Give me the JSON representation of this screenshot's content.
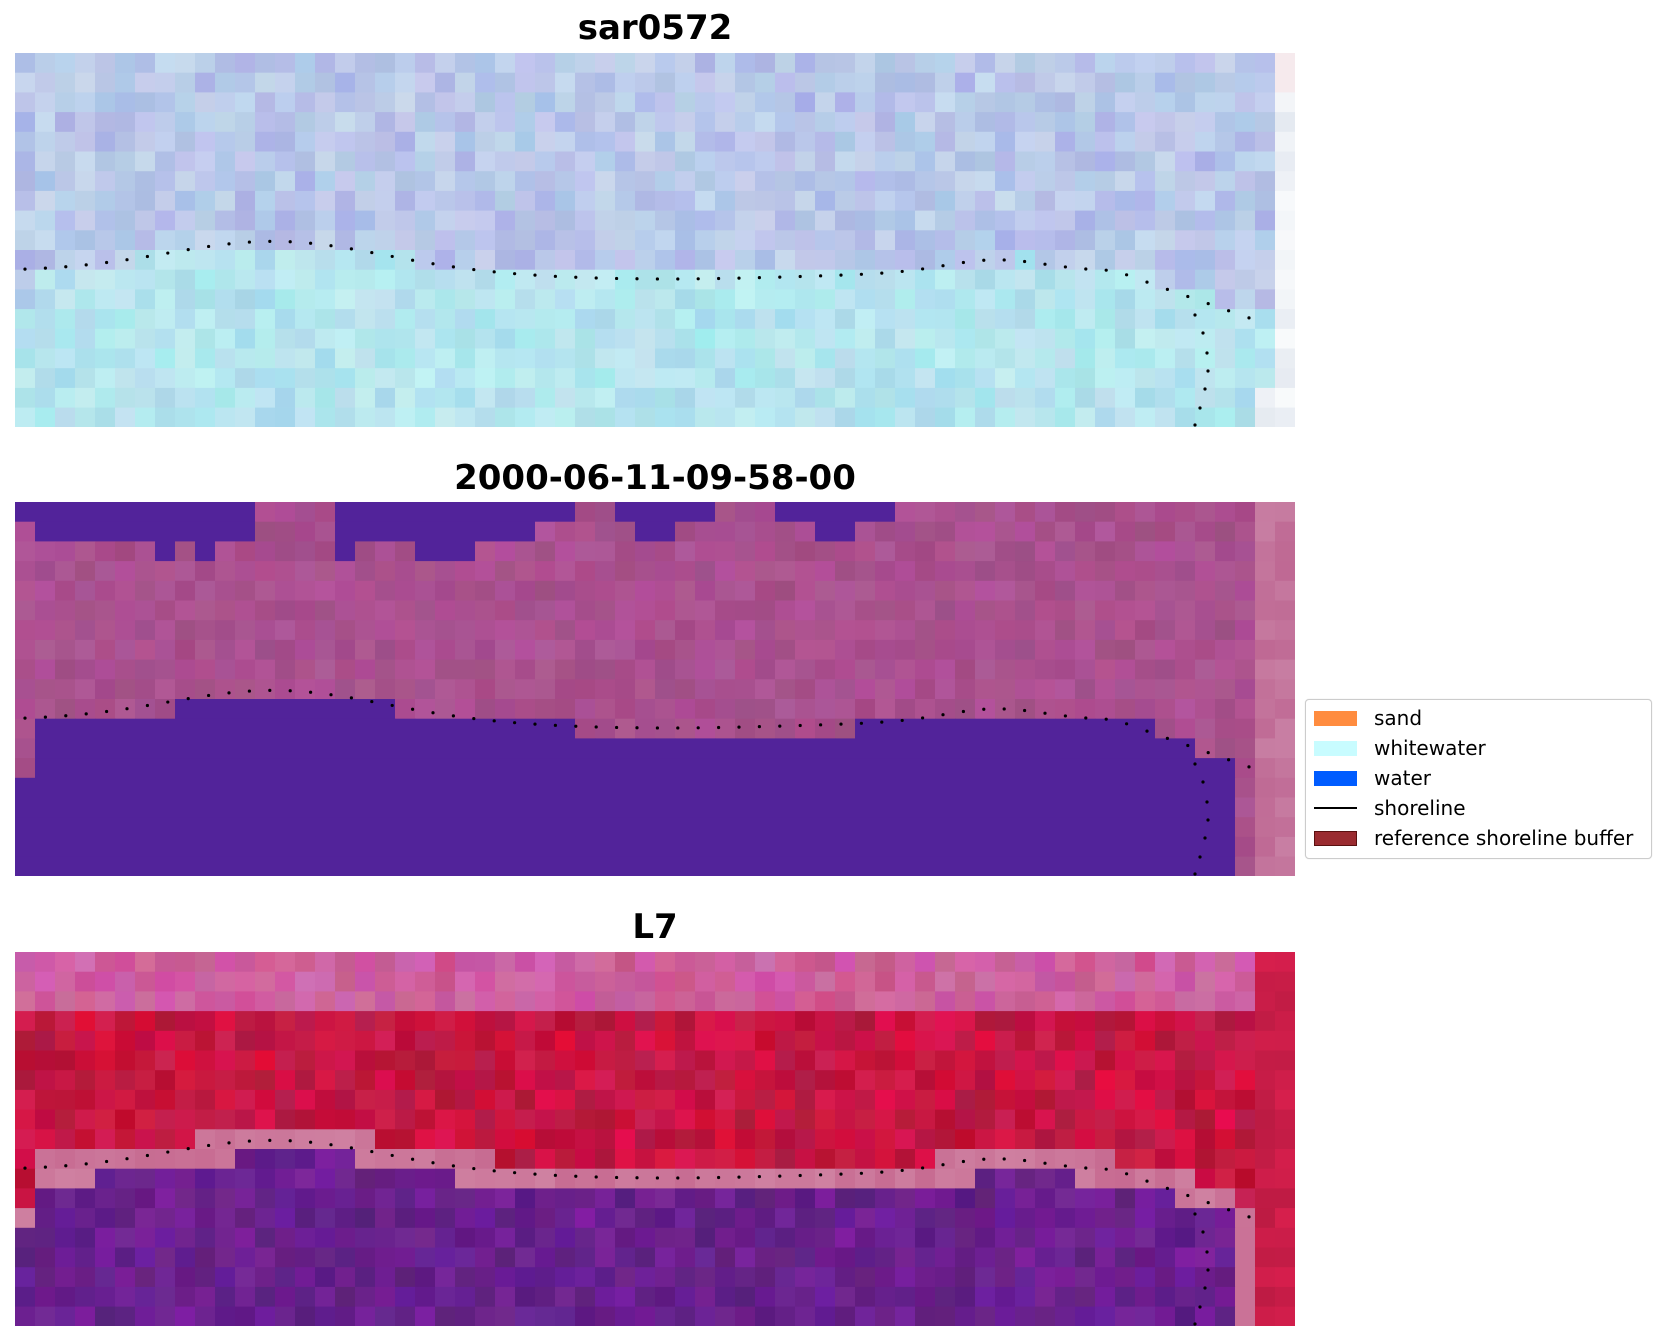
{
  "panels": [
    {
      "title": "sar0572",
      "style": "sar"
    },
    {
      "title": "2000-06-11-09-58-00",
      "style": "classified"
    },
    {
      "title": "L7",
      "style": "index"
    }
  ],
  "legend": {
    "items": [
      {
        "label": "sand",
        "kind": "patch",
        "color": "#ff8c3f"
      },
      {
        "label": "whitewater",
        "kind": "patch",
        "color": "#c8fcff"
      },
      {
        "label": "water",
        "kind": "patch",
        "color": "#005cff"
      },
      {
        "label": "shoreline",
        "kind": "line",
        "color": "#000000"
      },
      {
        "label": "reference shoreline buffer",
        "kind": "patch",
        "color": "#9a2b30",
        "edge": "#5a1010"
      }
    ]
  },
  "colors": {
    "classified_water": "#52239a",
    "classified_land": "#a05690",
    "shoreline_dots": "#000000"
  }
}
